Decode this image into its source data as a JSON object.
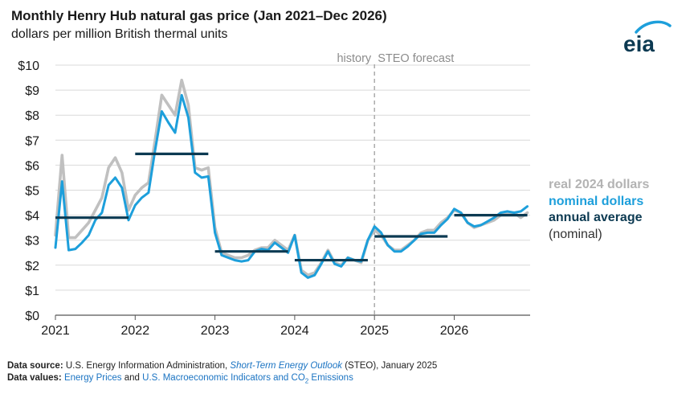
{
  "header": {
    "title": "Monthly Henry Hub natural gas price (Jan 2021–Dec 2026)",
    "subtitle": "dollars per million British thermal units"
  },
  "logo": {
    "text": "eia",
    "icon": "eia-logo",
    "color": "#0c3a52",
    "accent": "#1d9fdb"
  },
  "legend": {
    "real": "real 2024 dollars",
    "nominal": "nominal dollars",
    "average": "annual average",
    "average_note": "(nominal)"
  },
  "footer": {
    "source_label": "Data source:",
    "source_text_1": "U.S. Energy Information Administration,",
    "source_link": "Short-Term Energy Outlook",
    "source_text_2": "(STEO), January 2025",
    "values_label": "Data values:",
    "values_link_1": "Energy Prices",
    "values_and": "and",
    "values_link_2": "U.S. Macroeconomic Indicators and CO",
    "values_link_2_sub": "2",
    "values_link_2_end": "Emissions"
  },
  "chart_data": {
    "type": "line",
    "title": "Monthly Henry Hub natural gas price (Jan 2021–Dec 2026)",
    "ylabel": "dollars per million British thermal units",
    "ylim": [
      0,
      10
    ],
    "xlim": [
      "2021-01",
      "2026-12"
    ],
    "yticks": [
      "$0",
      "$1",
      "$2",
      "$3",
      "$4",
      "$5",
      "$6",
      "$7",
      "$8",
      "$9",
      "$10"
    ],
    "xticks": [
      "2021",
      "2022",
      "2023",
      "2024",
      "2025",
      "2026"
    ],
    "grid": true,
    "divider_label": "history STEO forecast",
    "divider_labels": [
      "history",
      "STEO forecast"
    ],
    "divider_at": "2025-01",
    "colors": {
      "real": "#c0c0c0",
      "nominal": "#1d9fdb",
      "average": "#0c3a52",
      "divider": "#a6a6a6",
      "grid": "#d9d9d9"
    },
    "series": [
      {
        "name": "real 2024 dollars",
        "values": [
          3.2,
          6.4,
          3.1,
          3.1,
          3.4,
          3.7,
          4.2,
          4.7,
          5.9,
          6.3,
          5.7,
          4.2,
          4.8,
          5.1,
          5.3,
          7.0,
          8.8,
          8.4,
          8.0,
          9.4,
          8.4,
          5.9,
          5.8,
          5.9,
          3.5,
          2.5,
          2.4,
          2.3,
          2.3,
          2.4,
          2.6,
          2.7,
          2.7,
          3.0,
          2.8,
          2.6,
          3.2,
          1.8,
          1.6,
          1.7,
          2.1,
          2.6,
          2.1,
          2.0,
          2.3,
          2.2,
          2.1,
          3.0,
          3.4,
          3.2,
          2.8,
          2.6,
          2.6,
          2.8,
          3.0,
          3.3,
          3.4,
          3.4,
          3.7,
          3.9,
          4.2,
          4.1,
          3.7,
          3.5,
          3.6,
          3.7,
          3.8,
          4.0,
          4.1,
          4.1,
          3.9,
          4.1
        ]
      },
      {
        "name": "nominal dollars",
        "values": [
          2.7,
          5.35,
          2.6,
          2.65,
          2.9,
          3.2,
          3.8,
          4.1,
          5.2,
          5.5,
          5.1,
          3.8,
          4.4,
          4.7,
          4.9,
          6.6,
          8.15,
          7.7,
          7.3,
          8.8,
          7.9,
          5.7,
          5.5,
          5.55,
          3.3,
          2.4,
          2.3,
          2.2,
          2.15,
          2.2,
          2.55,
          2.65,
          2.6,
          2.9,
          2.7,
          2.5,
          3.2,
          1.7,
          1.5,
          1.6,
          2.05,
          2.55,
          2.05,
          1.95,
          2.3,
          2.2,
          2.15,
          3.0,
          3.55,
          3.3,
          2.8,
          2.55,
          2.55,
          2.75,
          3.0,
          3.25,
          3.3,
          3.3,
          3.6,
          3.85,
          4.25,
          4.1,
          3.7,
          3.55,
          3.6,
          3.75,
          3.9,
          4.1,
          4.15,
          4.1,
          4.15,
          4.35
        ]
      }
    ],
    "annual_average": [
      {
        "year": "2021",
        "value": 3.9
      },
      {
        "year": "2022",
        "value": 6.45
      },
      {
        "year": "2023",
        "value": 2.55
      },
      {
        "year": "2024",
        "value": 2.2
      },
      {
        "year": "2025",
        "value": 3.15
      },
      {
        "year": "2026",
        "value": 4.0
      }
    ]
  }
}
